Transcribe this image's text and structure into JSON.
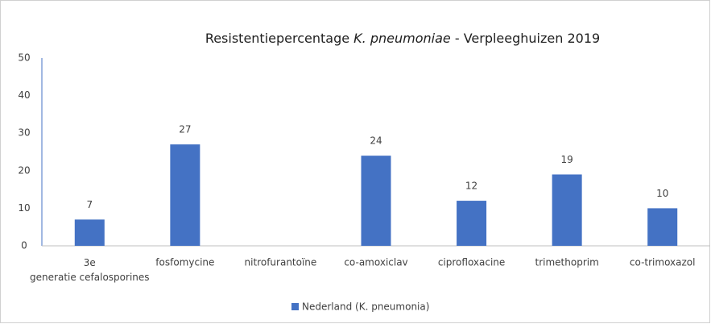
{
  "chart_data": {
    "type": "bar",
    "title": [
      "Resistentiepercentage",
      "K. pneumoniae",
      "-  Verpleeghuizen 2019"
    ],
    "categories": [
      "3e generatie cefalosporines",
      "fosfomycine",
      "nitrofurantoïne",
      "co-amoxiclav",
      "ciprofloxacine",
      "trimethoprim",
      "co-trimoxazol"
    ],
    "series": [
      {
        "name": "Nederland (K. pneumonia)",
        "color": "#4472c4",
        "values": [
          7,
          27,
          null,
          24,
          12,
          19,
          10
        ]
      }
    ],
    "ylim": [
      0,
      50
    ],
    "yticks": [
      0,
      10,
      20,
      30,
      40,
      50
    ],
    "grid": false,
    "legend": "bottom"
  }
}
